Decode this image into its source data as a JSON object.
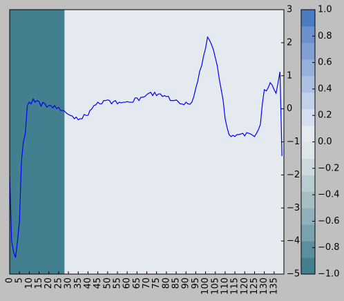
{
  "chart_data": {
    "type": "line",
    "series": [
      {
        "color": "#0000ff",
        "values": [
          -2.03,
          -4.0,
          -4.33,
          -4.5,
          -4.0,
          -3.4,
          -1.6,
          -1.0,
          -0.75,
          0.1,
          0.2,
          0.15,
          0.3,
          0.2,
          0.25,
          0.22,
          0.08,
          0.2,
          0.15,
          0.05,
          0.1,
          0.1,
          0.03,
          0.1,
          0.0,
          0.05,
          -0.05,
          -0.05,
          -0.07,
          -0.13,
          -0.17,
          -0.2,
          -0.22,
          -0.3,
          -0.25,
          -0.33,
          -0.3,
          -0.3,
          -0.17,
          -0.2,
          -0.2,
          -0.05,
          0.0,
          0.1,
          0.12,
          0.2,
          0.15,
          0.15,
          0.25,
          0.25,
          0.27,
          0.25,
          0.15,
          0.22,
          0.25,
          0.15,
          0.2,
          0.18,
          0.2,
          0.2,
          0.22,
          0.2,
          0.2,
          0.2,
          0.33,
          0.33,
          0.25,
          0.35,
          0.35,
          0.37,
          0.43,
          0.47,
          0.5,
          0.4,
          0.5,
          0.4,
          0.45,
          0.45,
          0.37,
          0.4,
          0.37,
          0.38,
          0.25,
          0.25,
          0.25,
          0.27,
          0.22,
          0.15,
          0.15,
          0.12,
          0.2,
          0.15,
          0.14,
          0.2,
          0.37,
          0.62,
          0.83,
          1.14,
          1.3,
          1.6,
          1.83,
          2.17,
          2.08,
          1.95,
          1.79,
          1.54,
          1.3,
          0.9,
          0.58,
          0.25,
          -0.3,
          -0.57,
          -0.78,
          -0.84,
          -0.8,
          -0.84,
          -0.78,
          -0.78,
          -0.76,
          -0.74,
          -0.82,
          -0.72,
          -0.74,
          -0.76,
          -0.8,
          -0.84,
          -0.74,
          -0.63,
          -0.47,
          0.15,
          0.58,
          0.54,
          0.64,
          0.79,
          0.72,
          0.58,
          0.47,
          0.79,
          1.12,
          -1.43
        ]
      }
    ],
    "xlim": [
      0,
      140
    ],
    "xticks": [
      0,
      5,
      10,
      15,
      20,
      25,
      30,
      35,
      40,
      45,
      50,
      55,
      60,
      65,
      70,
      75,
      80,
      85,
      90,
      95,
      100,
      105,
      110,
      115,
      120,
      125,
      130,
      135
    ],
    "ylim": [
      -5,
      3
    ],
    "yticks": [
      {
        "value": -5,
        "label": "−5"
      },
      {
        "value": -4,
        "label": "−4"
      },
      {
        "value": -3,
        "label": "−3"
      },
      {
        "value": -2,
        "label": "−2"
      },
      {
        "value": -1,
        "label": "−1"
      },
      0,
      1,
      2,
      3
    ],
    "regions": [
      {
        "start": 0,
        "end": 28,
        "value": -1
      },
      {
        "start": 28,
        "end": 140,
        "value": 0
      }
    ],
    "colormap": [
      "#43808f",
      "#5b8f9c",
      "#7aa2ad",
      "#90b1b9",
      "#a5bfc5",
      "#b9cdd1",
      "#ccdadd",
      "#dde5e8",
      "#e5e9f0",
      "#d6dff0",
      "#c2d0ea",
      "#abc0e2",
      "#96b0da",
      "#809fd3",
      "#6b90cc",
      "#4a7cc4"
    ],
    "clim": [
      -1,
      1
    ],
    "cticks": [
      {
        "value": -1,
        "label": "−1.0"
      },
      {
        "value": -0.8,
        "label": "−0.8"
      },
      {
        "value": -0.6,
        "label": "−0.6"
      },
      {
        "value": -0.4,
        "label": "−0.4"
      },
      {
        "value": -0.2,
        "label": "−0.2"
      },
      {
        "value": 0,
        "label": "0.0"
      },
      {
        "value": 0.2,
        "label": "0.2"
      },
      {
        "value": 0.4,
        "label": "0.4"
      },
      {
        "value": 0.6,
        "label": "0.6"
      },
      {
        "value": 0.8,
        "label": "0.8"
      },
      {
        "value": 1,
        "label": "1.0"
      }
    ]
  }
}
